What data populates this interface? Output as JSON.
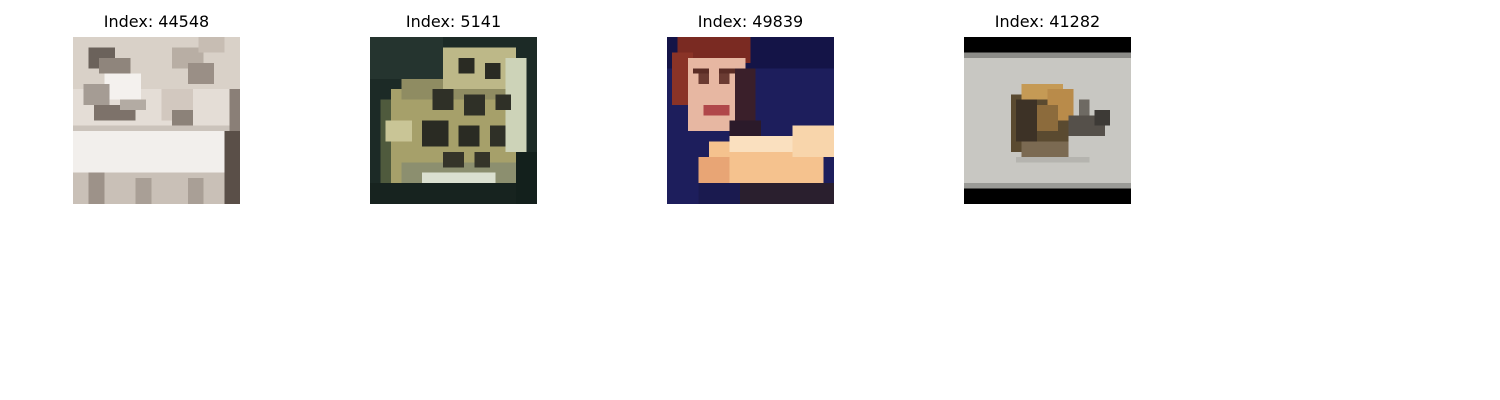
{
  "figure": {
    "panels": [
      {
        "title": "Index: 44548"
      },
      {
        "title": "Index: 5141"
      },
      {
        "title": "Index: 49839"
      },
      {
        "title": "Index: 41282"
      }
    ]
  }
}
